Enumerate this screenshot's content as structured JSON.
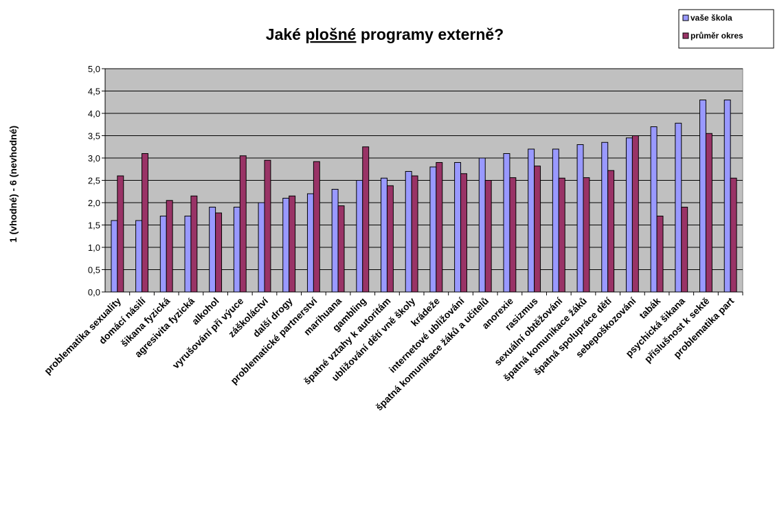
{
  "chart_data": {
    "type": "bar",
    "title_parts": [
      "Jaké ",
      "plošné",
      " programy externě?"
    ],
    "ylabel": "1 (vhodné) - 6 (nevhodné)",
    "xlabel": "",
    "ylim": [
      0,
      5
    ],
    "yticks": [
      "0,0",
      "0,5",
      "1,0",
      "1,5",
      "2,0",
      "2,5",
      "3,0",
      "3,5",
      "4,0",
      "4,5",
      "5,0"
    ],
    "grid": true,
    "legend_position": "top-right",
    "categories": [
      "problematika sexuality",
      "domácí násilí",
      "šikana fyzická",
      "agresivita fyzická",
      "alkohol",
      "vyrušování při výuce",
      "záškoláctví",
      "další drogy",
      "problematické partnerství",
      "marihuana",
      "gambling",
      "špatné vztahy k autoritám",
      "ubližování dětí vně školy",
      "krádeže",
      "internetové ubližování",
      "špatná komunikace žáků a učitelů",
      "anorexie",
      "rasizmus",
      "sexuální obtěžování",
      "špatná komunikace žáků",
      "špatná spolupráce dětí",
      "sebepoškozování",
      "tabák",
      "psychická šikana",
      "příslušnost k sektě",
      "problematika part"
    ],
    "series": [
      {
        "name": "vaše škola",
        "color": "#9999ff",
        "values": [
          1.6,
          1.6,
          1.7,
          1.7,
          1.9,
          1.9,
          2.0,
          2.1,
          2.2,
          2.3,
          2.5,
          2.55,
          2.7,
          2.8,
          2.9,
          3.0,
          3.1,
          3.2,
          3.2,
          3.3,
          3.35,
          3.45,
          3.7,
          3.78,
          4.3,
          4.3
        ]
      },
      {
        "name": "průměr okres",
        "color": "#993366",
        "values": [
          2.6,
          3.1,
          2.05,
          2.15,
          1.77,
          3.05,
          2.95,
          2.15,
          2.92,
          1.93,
          3.25,
          2.38,
          2.6,
          2.9,
          2.65,
          2.5,
          2.56,
          2.82,
          2.55,
          2.56,
          2.72,
          3.5,
          1.7,
          1.9,
          3.55,
          2.55
        ]
      }
    ],
    "plot_bg": "#c0c0c0"
  }
}
